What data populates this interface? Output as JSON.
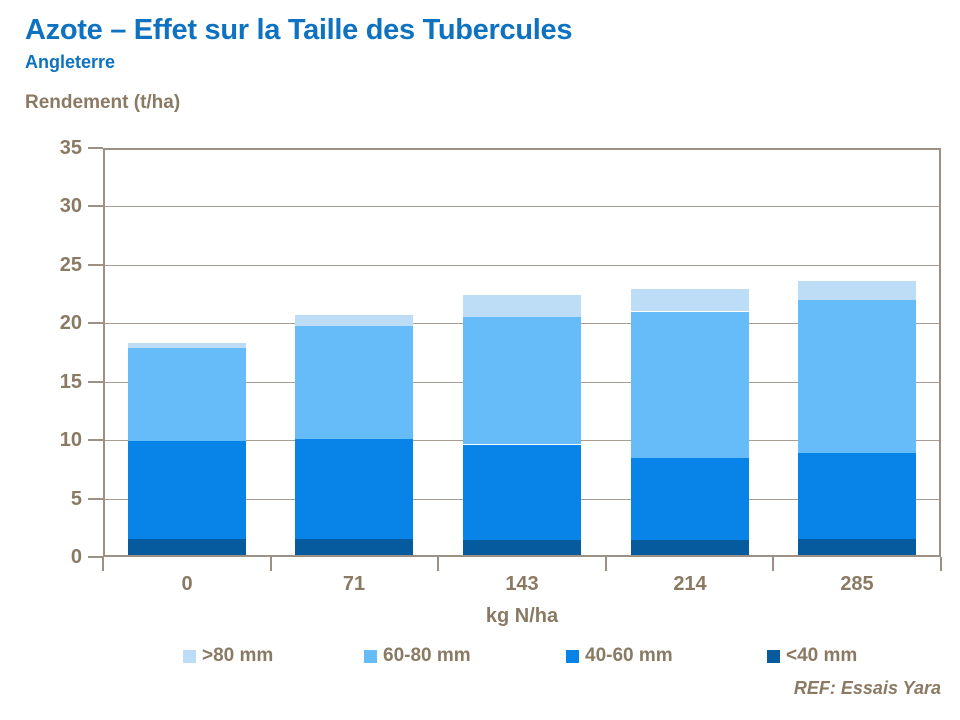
{
  "header": {
    "title": "Azote – Effet sur la Taille des Tubercules",
    "subtitle": "Angleterre"
  },
  "footer": {
    "ref": "REF: Essais Yara"
  },
  "colors": {
    "title_blue": "#0e72c0",
    "text_brown": "#8a7a63",
    "frame": "#9c9184",
    "gridline": "#a89d90",
    "background": "#ffffff"
  },
  "chart_data": {
    "type": "bar",
    "stacked": true,
    "title": "",
    "ylabel": "Rendement (t/ha)",
    "xlabel": "kg N/ha",
    "ylim": [
      0,
      35
    ],
    "ytick_step": 5,
    "yticks": [
      0,
      5,
      10,
      15,
      20,
      25,
      30,
      35
    ],
    "grid": true,
    "legend_position": "bottom",
    "categories": [
      "0",
      "71",
      "143",
      "214",
      "285"
    ],
    "series": [
      {
        "name": "<40 mm",
        "color": "#065a9e",
        "values": [
          1.5,
          1.5,
          1.5,
          1.5,
          1.5
        ]
      },
      {
        "name": "40-60 mm",
        "color": "#0884e8",
        "values": [
          8.4,
          8.6,
          8.1,
          7.0,
          7.4
        ]
      },
      {
        "name": "60-80 mm",
        "color": "#66bcf8",
        "values": [
          8.0,
          9.7,
          10.9,
          12.5,
          13.1
        ]
      },
      {
        "name": ">80 mm",
        "color": "#bdddf7",
        "values": [
          0.4,
          0.9,
          1.9,
          1.9,
          1.6
        ]
      }
    ],
    "totals": [
      18.3,
      20.7,
      22.4,
      22.9,
      23.6
    ],
    "legend": [
      {
        "label": ">80 mm",
        "color": "#bdddf7"
      },
      {
        "label": "60-80 mm",
        "color": "#66bcf8"
      },
      {
        "label": "40-60 mm",
        "color": "#0884e8"
      },
      {
        "label": "<40 mm",
        "color": "#065a9e"
      }
    ]
  }
}
